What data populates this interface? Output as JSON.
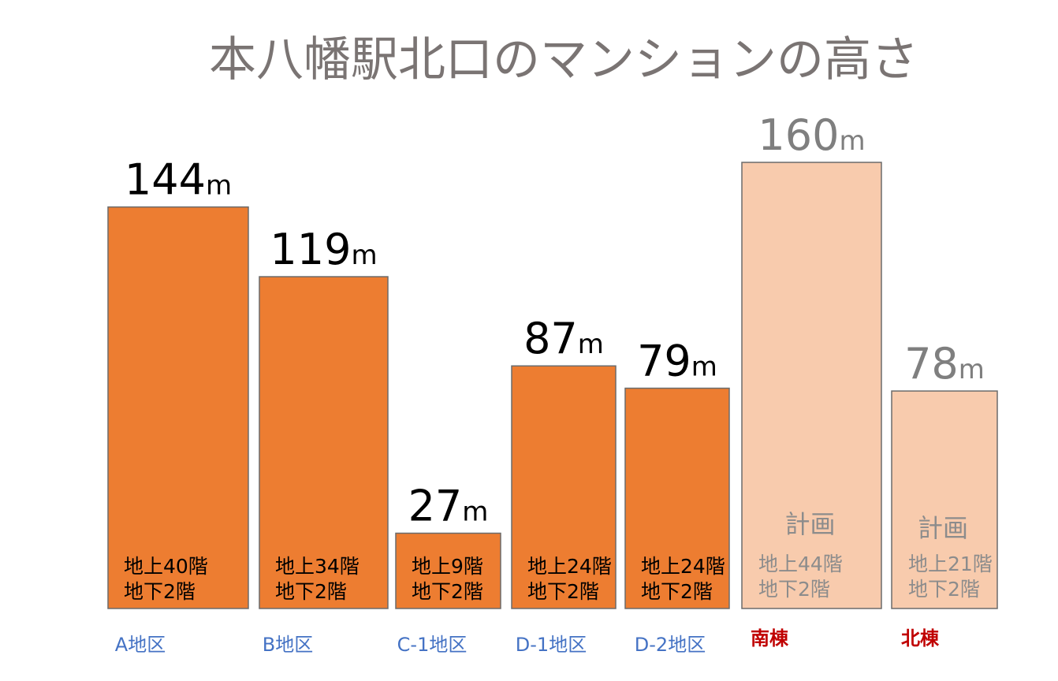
{
  "title": "本八幡駅北口のマンションの高さ",
  "chart_data": {
    "type": "bar",
    "unit": "m",
    "categories": [
      "A地区",
      "B地区",
      "C-1地区",
      "D-1地区",
      "D-2地区",
      "南棟",
      "北棟"
    ],
    "values": [
      144,
      119,
      27,
      87,
      79,
      160,
      78
    ],
    "bars": [
      {
        "category": "A地区",
        "value": 144,
        "floors_above": "地上40階",
        "floors_below": "地下2階",
        "plan": "",
        "status": "existing"
      },
      {
        "category": "B地区",
        "value": 119,
        "floors_above": "地上34階",
        "floors_below": "地下2階",
        "plan": "",
        "status": "existing"
      },
      {
        "category": "C-1地区",
        "value": 27,
        "floors_above": "地上9階",
        "floors_below": "地下2階",
        "plan": "",
        "status": "existing"
      },
      {
        "category": "D-1地区",
        "value": 87,
        "floors_above": "地上24階",
        "floors_below": "地下2階",
        "plan": "",
        "status": "existing"
      },
      {
        "category": "D-2地区",
        "value": 79,
        "floors_above": "地上24階",
        "floors_below": "地下2階",
        "plan": "",
        "status": "existing"
      },
      {
        "category": "南棟",
        "value": 160,
        "floors_above": "地上44階",
        "floors_below": "地下2階",
        "plan": "計画",
        "status": "planned"
      },
      {
        "category": "北棟",
        "value": 78,
        "floors_above": "地上21階",
        "floors_below": "地下2階",
        "plan": "計画",
        "status": "planned"
      }
    ],
    "colors": {
      "existing_fill": "#ed7d31",
      "planned_fill": "#f8cbad",
      "bar_stroke": "#6b6b6b",
      "existing_value_text": "#000000",
      "planned_value_text": "#7f7f7f",
      "existing_inner_text": "#000000",
      "planned_inner_text": "#8c8c8c",
      "existing_category_text": "#4472c4",
      "planned_category_text": "#c00000"
    }
  }
}
